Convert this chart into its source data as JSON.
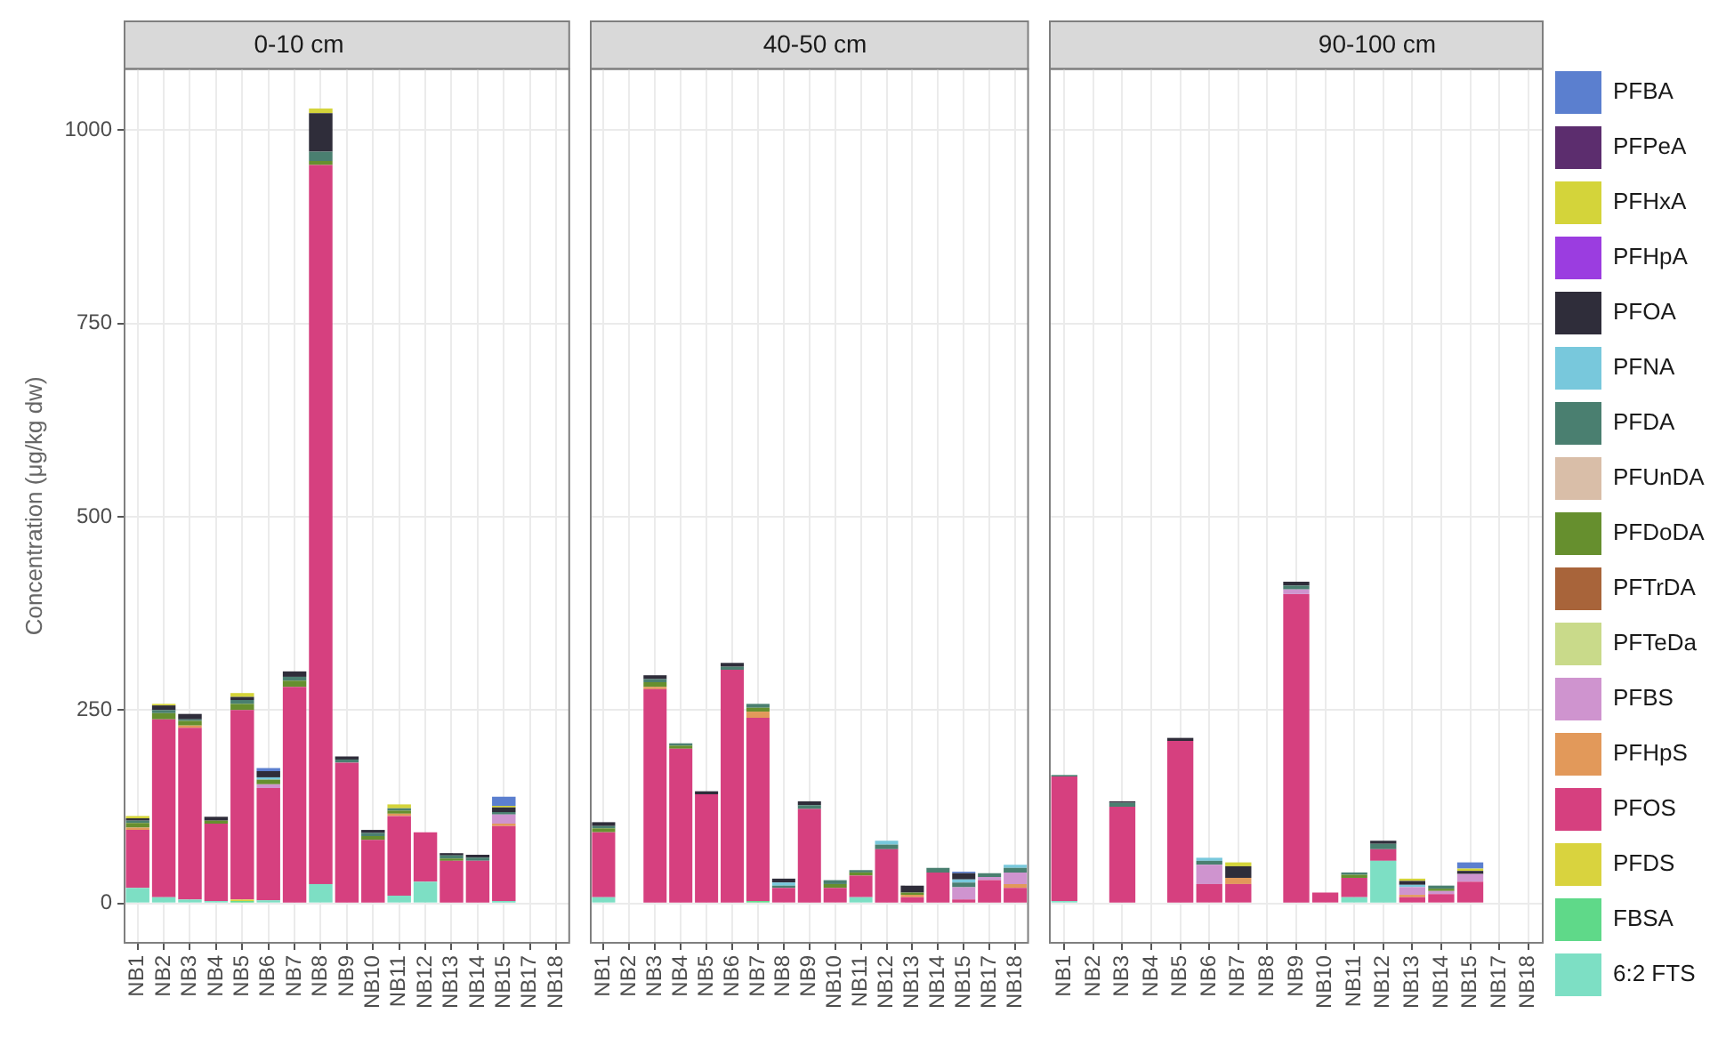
{
  "chart_data": [
    {
      "type": "bar",
      "title": "0-10 cm",
      "ylabel": "Concentration (μg/kg dw)",
      "stacked": true,
      "grid": true,
      "ylim": [
        -51,
        1079
      ],
      "yticks": [
        0,
        250,
        500,
        750,
        1000
      ],
      "categories": [
        "NB1",
        "NB2",
        "NB3",
        "NB4",
        "NB5",
        "NB6",
        "NB7",
        "NB8",
        "NB9",
        "NB10",
        "NB11",
        "NB12",
        "NB13",
        "NB14",
        "NB15",
        "NB17",
        "NB18"
      ],
      "series": [
        {
          "color": "#7ddfc4",
          "values": [
            20,
            8,
            5,
            3,
            null,
            4,
            null,
            25,
            null,
            null,
            10,
            28,
            null,
            null,
            3,
            null,
            null
          ]
        },
        {
          "color": "#5fd989",
          "values": [
            null,
            null,
            null,
            null,
            3,
            null,
            null,
            null,
            null,
            null,
            null,
            null,
            null,
            null,
            null,
            null,
            null
          ]
        },
        {
          "color": "#d9d33e",
          "values": [
            null,
            null,
            null,
            null,
            2,
            null,
            null,
            null,
            null,
            null,
            null,
            null,
            null,
            null,
            null,
            null,
            null
          ]
        },
        {
          "color": "#d6407f",
          "values": [
            75,
            230,
            222,
            100,
            245,
            145,
            280,
            930,
            182,
            82,
            103,
            64,
            55,
            55,
            97,
            null,
            null
          ]
        },
        {
          "color": "#e2995a",
          "values": [
            3,
            null,
            3,
            null,
            null,
            null,
            null,
            null,
            null,
            null,
            3,
            null,
            null,
            null,
            3,
            null,
            null
          ]
        },
        {
          "color": "#cf94cf",
          "values": [
            null,
            null,
            null,
            null,
            null,
            5,
            null,
            null,
            null,
            null,
            null,
            null,
            null,
            null,
            12,
            null,
            null
          ]
        },
        {
          "color": "#668f2e",
          "values": [
            6,
            8,
            6,
            4,
            8,
            6,
            8,
            5,
            null,
            5,
            4,
            null,
            3,
            null,
            null,
            null,
            null
          ]
        },
        {
          "color": "#4a7f70",
          "values": [
            3,
            4,
            2,
            null,
            5,
            null,
            5,
            12,
            4,
            4,
            3,
            null,
            4,
            4,
            3,
            null,
            null
          ]
        },
        {
          "color": "#78c8dc",
          "values": [
            null,
            null,
            null,
            null,
            null,
            3,
            null,
            null,
            null,
            null,
            null,
            null,
            null,
            null,
            null,
            null,
            null
          ]
        },
        {
          "color": "#2f2d3a",
          "values": [
            3,
            6,
            7,
            5,
            4,
            8,
            7,
            50,
            4,
            4,
            null,
            null,
            3,
            4,
            6,
            null,
            null
          ]
        },
        {
          "color": "#d4d43a",
          "values": [
            3,
            2,
            null,
            null,
            5,
            null,
            null,
            6,
            null,
            null,
            5,
            null,
            null,
            null,
            2,
            null,
            null
          ]
        },
        {
          "color": "#5b7fcf",
          "values": [
            null,
            null,
            null,
            null,
            null,
            4,
            null,
            null,
            null,
            null,
            null,
            null,
            null,
            null,
            12,
            null,
            null
          ]
        }
      ]
    },
    {
      "type": "bar",
      "title": "40-50 cm",
      "stacked": true,
      "grid": true,
      "tick_labels": "x",
      "ylim": [
        -51,
        1079
      ],
      "yticks": [
        0,
        250,
        500,
        750,
        1000
      ],
      "categories": [
        "NB1",
        "NB2",
        "NB3",
        "NB4",
        "NB5",
        "NB6",
        "NB7",
        "NB8",
        "NB9",
        "NB10",
        "NB11",
        "NB12",
        "NB13",
        "NB14",
        "NB15",
        "NB17",
        "NB18"
      ],
      "series": [
        {
          "color": "#7ddfc4",
          "values": [
            8,
            null,
            null,
            null,
            null,
            null,
            null,
            null,
            null,
            null,
            8,
            null,
            null,
            null,
            null,
            null,
            null
          ]
        },
        {
          "color": "#5fd989",
          "values": [
            null,
            null,
            null,
            null,
            null,
            null,
            3,
            null,
            null,
            null,
            null,
            null,
            null,
            null,
            null,
            null,
            null
          ]
        },
        {
          "color": "#d6407f",
          "values": [
            84,
            null,
            277,
            200,
            141,
            302,
            237,
            20,
            122,
            20,
            28,
            70,
            8,
            40,
            5,
            30,
            20
          ]
        },
        {
          "color": "#e2995a",
          "values": [
            null,
            null,
            3,
            null,
            null,
            null,
            8,
            null,
            null,
            null,
            null,
            null,
            3,
            null,
            null,
            null,
            5
          ]
        },
        {
          "color": "#cf94cf",
          "values": [
            null,
            null,
            null,
            null,
            null,
            null,
            null,
            null,
            null,
            null,
            null,
            null,
            null,
            null,
            16,
            4,
            15
          ]
        },
        {
          "color": "#668f2e",
          "values": [
            5,
            null,
            6,
            4,
            null,
            null,
            5,
            null,
            null,
            5,
            4,
            null,
            3,
            null,
            null,
            null,
            null
          ]
        },
        {
          "color": "#4a7f70",
          "values": [
            3,
            null,
            4,
            3,
            null,
            4,
            5,
            3,
            5,
            5,
            3,
            6,
            null,
            6,
            6,
            5,
            6
          ]
        },
        {
          "color": "#78c8dc",
          "values": [
            null,
            null,
            null,
            null,
            null,
            null,
            null,
            4,
            null,
            null,
            null,
            5,
            null,
            null,
            4,
            null,
            4
          ]
        },
        {
          "color": "#2f2d3a",
          "values": [
            5,
            null,
            5,
            null,
            4,
            5,
            null,
            5,
            5,
            null,
            null,
            null,
            9,
            null,
            8,
            null,
            null
          ]
        },
        {
          "color": "#5b7fcf",
          "values": [
            null,
            null,
            null,
            null,
            null,
            null,
            null,
            null,
            null,
            null,
            null,
            null,
            null,
            null,
            2,
            null,
            null
          ]
        }
      ]
    },
    {
      "type": "bar",
      "title": "90-100 cm",
      "stacked": true,
      "grid": true,
      "legend": "right",
      "tick_labels": "x",
      "ylim": [
        -51,
        1079
      ],
      "yticks": [
        0,
        250,
        500,
        750,
        1000
      ],
      "categories": [
        "NB1",
        "NB2",
        "NB3",
        "NB4",
        "NB5",
        "NB6",
        "NB7",
        "NB8",
        "NB9",
        "NB10",
        "NB11",
        "NB12",
        "NB13",
        "NB14",
        "NB15",
        "NB17",
        "NB18"
      ],
      "series": [
        {
          "name": "6:2 FTS",
          "color": "#7ddfc4",
          "values": [
            3,
            null,
            null,
            null,
            null,
            null,
            null,
            null,
            null,
            null,
            8,
            55,
            null,
            null,
            null,
            null,
            null
          ]
        },
        {
          "name": "FBSA",
          "color": "#5fd989",
          "values": [
            null,
            null,
            null,
            null,
            null,
            null,
            null,
            null,
            null,
            null,
            null,
            null,
            null,
            null,
            null,
            null,
            null
          ]
        },
        {
          "name": "PFDS",
          "color": "#d9d33e",
          "values": [
            null,
            null,
            null,
            null,
            null,
            null,
            null,
            null,
            null,
            null,
            null,
            null,
            null,
            null,
            null,
            null,
            null
          ]
        },
        {
          "name": "PFOS",
          "color": "#d6407f",
          "values": [
            161,
            null,
            125,
            null,
            210,
            25,
            25,
            null,
            400,
            14,
            25,
            15,
            8,
            12,
            28,
            null,
            null
          ]
        },
        {
          "name": "PFHpS",
          "color": "#e2995a",
          "values": [
            null,
            null,
            null,
            null,
            null,
            null,
            8,
            null,
            null,
            null,
            null,
            null,
            3,
            null,
            null,
            null,
            null
          ]
        },
        {
          "name": "PFBS",
          "color": "#cf94cf",
          "values": [
            null,
            null,
            null,
            null,
            null,
            25,
            null,
            null,
            6,
            null,
            null,
            null,
            10,
            4,
            10,
            null,
            null
          ]
        },
        {
          "name": "PFTeDa",
          "color": "#c9da8a",
          "values": [
            null,
            null,
            null,
            null,
            null,
            null,
            null,
            null,
            null,
            null,
            null,
            null,
            null,
            null,
            null,
            null,
            null
          ]
        },
        {
          "name": "PFTrDA",
          "color": "#a8643a",
          "values": [
            null,
            null,
            null,
            null,
            null,
            null,
            null,
            null,
            null,
            null,
            null,
            null,
            null,
            null,
            null,
            null,
            null
          ]
        },
        {
          "name": "PFDoDA",
          "color": "#668f2e",
          "values": [
            null,
            null,
            null,
            null,
            null,
            null,
            null,
            null,
            null,
            null,
            4,
            null,
            null,
            3,
            null,
            null,
            null
          ]
        },
        {
          "name": "PFUnDA",
          "color": "#d9bea8",
          "values": [
            null,
            null,
            null,
            null,
            null,
            null,
            null,
            null,
            null,
            null,
            null,
            null,
            null,
            null,
            null,
            null,
            null
          ]
        },
        {
          "name": "PFDA",
          "color": "#4a7f70",
          "values": [
            2,
            null,
            5,
            null,
            null,
            5,
            null,
            null,
            5,
            null,
            3,
            7,
            null,
            4,
            null,
            null,
            null
          ]
        },
        {
          "name": "PFNA",
          "color": "#78c8dc",
          "values": [
            null,
            null,
            null,
            null,
            null,
            4,
            null,
            null,
            null,
            null,
            null,
            null,
            3,
            null,
            null,
            null,
            null
          ]
        },
        {
          "name": "PFOA",
          "color": "#2f2d3a",
          "values": [
            null,
            null,
            2,
            null,
            4,
            null,
            15,
            null,
            5,
            null,
            null,
            4,
            5,
            null,
            4,
            null,
            null
          ]
        },
        {
          "name": "PFHpA",
          "color": "#9b3de0",
          "values": [
            null,
            null,
            null,
            null,
            null,
            null,
            null,
            null,
            null,
            null,
            null,
            null,
            null,
            null,
            null,
            null,
            null
          ]
        },
        {
          "name": "PFHxA",
          "color": "#d4d43a",
          "values": [
            null,
            null,
            null,
            null,
            null,
            null,
            5,
            null,
            null,
            null,
            null,
            null,
            3,
            null,
            3,
            null,
            null
          ]
        },
        {
          "name": "PFPeA",
          "color": "#5c2d6e",
          "values": [
            null,
            null,
            null,
            null,
            null,
            null,
            null,
            null,
            null,
            null,
            null,
            null,
            null,
            null,
            null,
            null,
            null
          ]
        },
        {
          "name": "PFBA",
          "color": "#5b7fcf",
          "values": [
            null,
            null,
            null,
            null,
            null,
            null,
            null,
            null,
            null,
            null,
            null,
            null,
            null,
            null,
            8,
            null,
            null
          ]
        }
      ]
    }
  ]
}
